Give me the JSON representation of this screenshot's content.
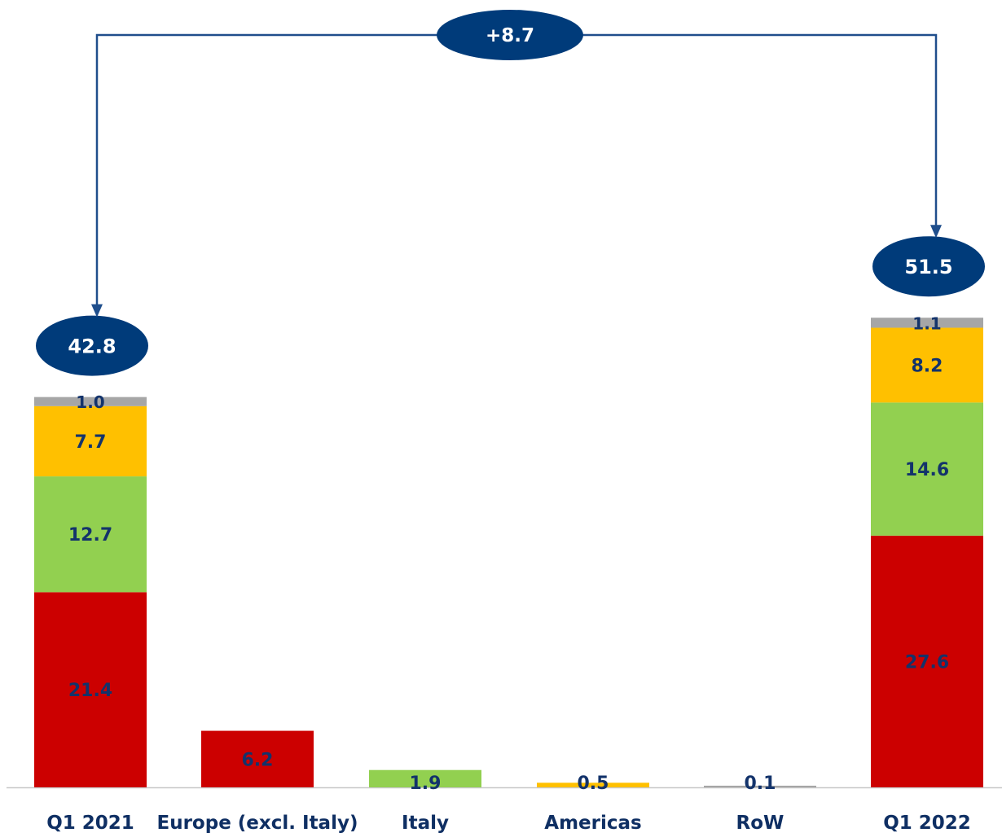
{
  "chart_data": {
    "type": "bar",
    "subtype": "stacked-waterfall",
    "categories": [
      "Q1 2021",
      "Europe (excl. Italy)",
      "Italy",
      "Americas",
      "RoW",
      "Q1 2022"
    ],
    "series": [
      {
        "name": "",
        "color": "#cc0000",
        "values": [
          21.4,
          6.2,
          null,
          null,
          null,
          27.6
        ]
      },
      {
        "name": "",
        "color": "#92d050",
        "values": [
          12.7,
          null,
          1.9,
          null,
          null,
          14.6
        ]
      },
      {
        "name": "",
        "color": "#ffc000",
        "values": [
          7.7,
          null,
          null,
          0.5,
          null,
          8.2
        ]
      },
      {
        "name": "",
        "color": "#a6a6a6",
        "values": [
          1.0,
          null,
          null,
          null,
          0.1,
          1.1
        ]
      }
    ],
    "totals": [
      {
        "category": "Q1 2021",
        "value": "42.8"
      },
      {
        "category": "Q1 2022",
        "value": "51.5"
      }
    ],
    "change_label": "+8.7",
    "ylim": [
      0,
      55
    ],
    "grid": false,
    "legend": "none",
    "title": "",
    "xlabel": "",
    "ylabel": ""
  },
  "colors": {
    "bubble": "#003b7a",
    "connector": "#1f4e8c",
    "label_text": "#13336b",
    "baseline": "#c8c8c8"
  }
}
